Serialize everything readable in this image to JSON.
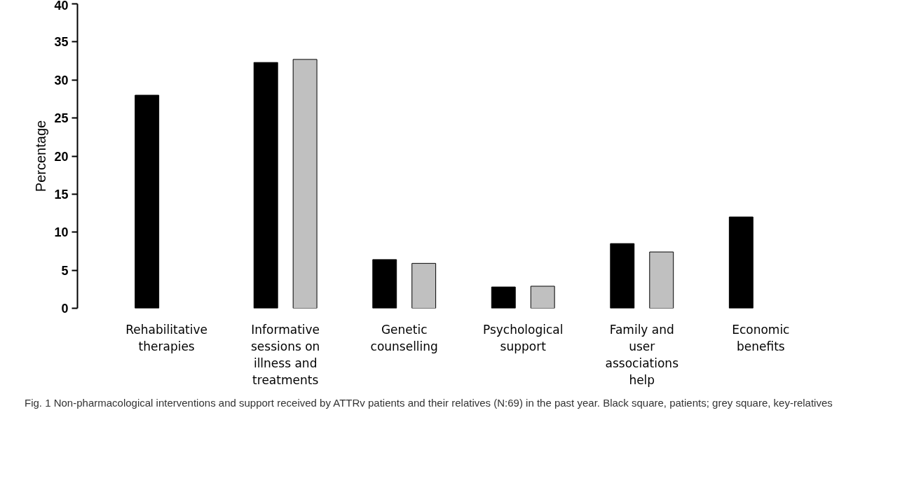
{
  "chart_data": {
    "type": "bar",
    "ylabel": "Percentage",
    "categories": [
      "Rehabilitative therapies",
      "Informative sessions on illness and treatments",
      "Genetic counselling",
      "Psychological support",
      "Family and user associations help",
      "Economic benefits"
    ],
    "series": [
      {
        "color": "#000000",
        "values": [
          28.0,
          32.3,
          6.4,
          2.8,
          8.5,
          12.0
        ]
      },
      {
        "color": "#c0c0c0",
        "values": [
          null,
          32.7,
          5.9,
          2.9,
          7.4,
          null
        ]
      }
    ],
    "ylim": [
      0,
      40
    ],
    "yticks": [
      0,
      5,
      10,
      15,
      20,
      25,
      30,
      35,
      40
    ],
    "grid": false,
    "annotations": [
      "Fig. 1 Non-pharmacological interventions and support received by ATTRv patients and their relatives (N:69) in the past year. Black square, patients; grey square, key-relatives"
    ]
  }
}
